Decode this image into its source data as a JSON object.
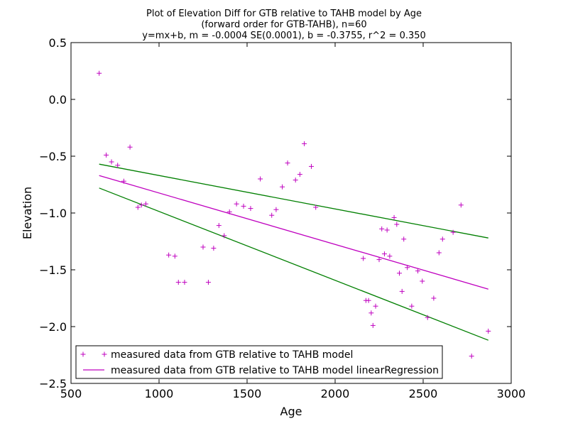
{
  "chart_data": {
    "type": "scatter",
    "title": [
      "Plot of Elevation Diff for GTB relative to TAHB model by Age",
      "(forward order for GTB-TAHB), n=60",
      "y=mx+b, m = -0.0004 SE(0.0001), b = -0.3755, r^2 = 0.350"
    ],
    "xlabel": "Age",
    "ylabel": "Elevation",
    "xlim": [
      500,
      3000
    ],
    "ylim": [
      -2.5,
      0.5
    ],
    "xticks": [
      500,
      1000,
      1500,
      2000,
      2500,
      3000
    ],
    "yticks": [
      0.5,
      0.0,
      -0.5,
      -1.0,
      -1.5,
      -2.0,
      -2.5
    ],
    "xtick_labels": [
      "500",
      "1000",
      "1500",
      "2000",
      "2500",
      "3000"
    ],
    "ytick_labels": [
      "0.5",
      "0.0",
      "−0.5",
      "−1.0",
      "−1.5",
      "−2.0",
      "−2.5"
    ],
    "grid": false,
    "legend_position": "lower-left",
    "colors": {
      "scatter": "#bf00bf",
      "regression": "#bf00bf",
      "confidence": "#007f00"
    },
    "series": [
      {
        "name": "measured data from GTB relative to TAHB model",
        "kind": "scatter",
        "marker": "+",
        "x": [
          660,
          700,
          730,
          765,
          800,
          835,
          880,
          900,
          925,
          1055,
          1090,
          1110,
          1145,
          1250,
          1280,
          1310,
          1340,
          1370,
          1400,
          1440,
          1480,
          1520,
          1575,
          1640,
          1665,
          1700,
          1730,
          1775,
          1800,
          1825,
          1865,
          1890,
          2160,
          2175,
          2190,
          2205,
          2215,
          2230,
          2250,
          2265,
          2280,
          2295,
          2310,
          2335,
          2350,
          2365,
          2380,
          2390,
          2410,
          2435,
          2470,
          2495,
          2525,
          2560,
          2590,
          2610,
          2670,
          2715,
          2775,
          2870
        ],
        "y": [
          0.23,
          -0.49,
          -0.55,
          -0.58,
          -0.72,
          -0.42,
          -0.95,
          -0.93,
          -0.92,
          -1.37,
          -1.38,
          -1.61,
          -1.61,
          -1.3,
          -1.61,
          -1.31,
          -1.11,
          -1.2,
          -0.99,
          -0.92,
          -0.94,
          -0.96,
          -0.7,
          -1.02,
          -0.97,
          -0.77,
          -0.56,
          -0.71,
          -0.66,
          -0.39,
          -0.59,
          -0.95,
          -1.4,
          -1.77,
          -1.77,
          -1.88,
          -1.99,
          -1.82,
          -1.41,
          -1.14,
          -1.36,
          -1.15,
          -1.38,
          -1.04,
          -1.1,
          -1.53,
          -1.69,
          -1.23,
          -1.48,
          -1.82,
          -1.51,
          -1.6,
          -1.92,
          -1.75,
          -1.35,
          -1.23,
          -1.17,
          -0.93,
          -2.26,
          -2.04
        ]
      },
      {
        "name": "measured data from GTB relative to TAHB model linearRegression",
        "kind": "line",
        "x": [
          660,
          2870
        ],
        "y": [
          -0.67,
          -1.67
        ]
      },
      {
        "kind": "line",
        "role": "upper-bound",
        "x": [
          660,
          2870
        ],
        "y": [
          -0.57,
          -1.22
        ]
      },
      {
        "kind": "line",
        "role": "lower-bound",
        "x": [
          660,
          2870
        ],
        "y": [
          -0.78,
          -2.12
        ]
      }
    ]
  }
}
